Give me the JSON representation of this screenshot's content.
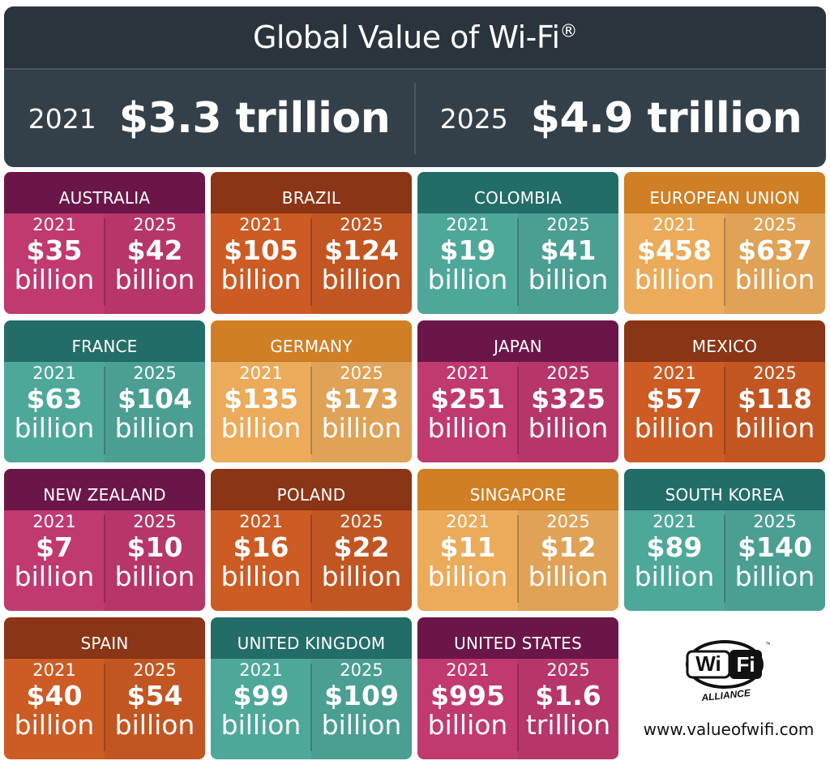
{
  "header": {
    "title": "Global Value of Wi-Fi",
    "title_mark": "®",
    "left": {
      "year": "2021",
      "value": "$3.3 trillion"
    },
    "right": {
      "year": "2025",
      "value": "$4.9 trillion"
    }
  },
  "colors": {
    "magenta": "#c0396f",
    "rust": "#cd5b24",
    "teal": "#4ea89a",
    "amber": "#ebab5b",
    "header_bg": "#344049"
  },
  "year_a": "2021",
  "year_b": "2025",
  "countries": [
    {
      "name": "AUSTRALIA",
      "theme": "magenta",
      "v2021": "$35",
      "u2021": "billion",
      "v2025": "$42",
      "u2025": "billion"
    },
    {
      "name": "BRAZIL",
      "theme": "rust",
      "v2021": "$105",
      "u2021": "billion",
      "v2025": "$124",
      "u2025": "billion"
    },
    {
      "name": "COLOMBIA",
      "theme": "teal",
      "v2021": "$19",
      "u2021": "billion",
      "v2025": "$41",
      "u2025": "billion"
    },
    {
      "name": "EUROPEAN UNION",
      "theme": "amber",
      "v2021": "$458",
      "u2021": "billion",
      "v2025": "$637",
      "u2025": "billion"
    },
    {
      "name": "FRANCE",
      "theme": "teal",
      "v2021": "$63",
      "u2021": "billion",
      "v2025": "$104",
      "u2025": "billion"
    },
    {
      "name": "GERMANY",
      "theme": "amber",
      "v2021": "$135",
      "u2021": "billion",
      "v2025": "$173",
      "u2025": "billion"
    },
    {
      "name": "JAPAN",
      "theme": "magenta",
      "v2021": "$251",
      "u2021": "billion",
      "v2025": "$325",
      "u2025": "billion"
    },
    {
      "name": "MEXICO",
      "theme": "rust",
      "v2021": "$57",
      "u2021": "billion",
      "v2025": "$118",
      "u2025": "billion"
    },
    {
      "name": "NEW ZEALAND",
      "theme": "magenta",
      "v2021": "$7",
      "u2021": "billion",
      "v2025": "$10",
      "u2025": "billion"
    },
    {
      "name": "POLAND",
      "theme": "rust",
      "v2021": "$16",
      "u2021": "billion",
      "v2025": "$22",
      "u2025": "billion"
    },
    {
      "name": "SINGAPORE",
      "theme": "amber",
      "v2021": "$11",
      "u2021": "billion",
      "v2025": "$12",
      "u2025": "billion"
    },
    {
      "name": "SOUTH KOREA",
      "theme": "teal",
      "v2021": "$89",
      "u2021": "billion",
      "v2025": "$140",
      "u2025": "billion"
    },
    {
      "name": "SPAIN",
      "theme": "rust",
      "v2021": "$40",
      "u2021": "billion",
      "v2025": "$54",
      "u2025": "billion"
    },
    {
      "name": "UNITED KINGDOM",
      "theme": "teal",
      "v2021": "$99",
      "u2021": "billion",
      "v2025": "$109",
      "u2025": "billion"
    },
    {
      "name": "UNITED STATES",
      "theme": "magenta",
      "v2021": "$995",
      "u2021": "billion",
      "v2025": "$1.6",
      "u2025": "trillion"
    }
  ],
  "logo": {
    "icon": "wifi-alliance-logo",
    "wordmark": "Wi Fi",
    "subtext": "ALLIANCE",
    "tm": "™"
  },
  "website": "www.valueofwifi.com"
}
